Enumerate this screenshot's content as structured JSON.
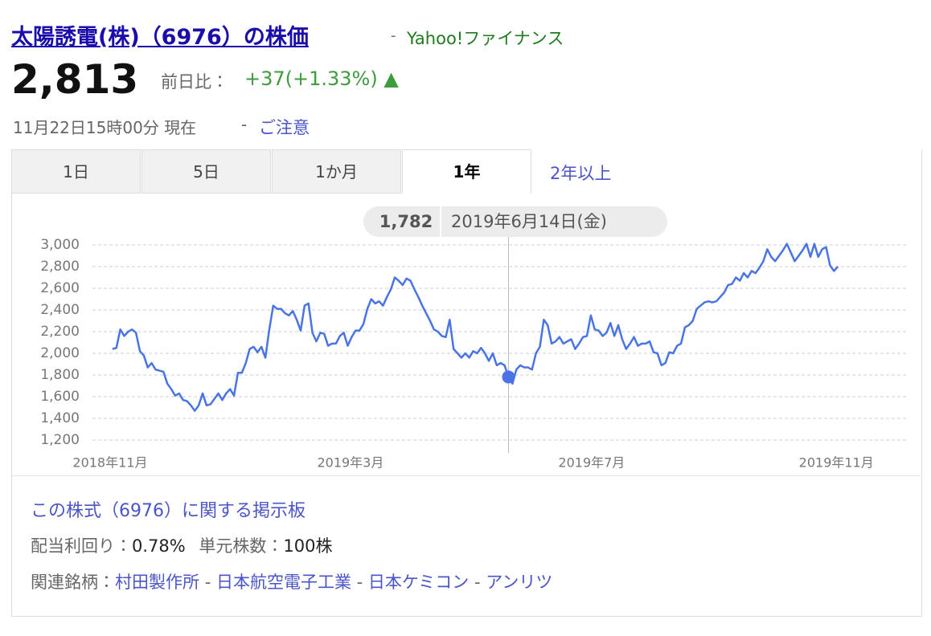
{
  "header": {
    "title": "太陽誘電(株)（6976）の株価",
    "separator": "-",
    "source": "Yahoo!ファイナンス",
    "price": "2,813",
    "change_label": "前日比：",
    "change": "+37(+1.33%) ▲",
    "status_time": "11月22日15時00分 現在",
    "notice": "ご注意"
  },
  "tabs": [
    "1日",
    "5日",
    "1か月",
    "1年",
    "2年以上"
  ],
  "chart_data": {
    "type": "line",
    "color": "#4a74e6",
    "grid": true,
    "series": [
      {
        "name": "株価",
        "color": "#4a74e6",
        "values": [
          2040,
          2050,
          2220,
          2160,
          2200,
          2220,
          2190,
          2020,
          1980,
          1870,
          1910,
          1850,
          1840,
          1830,
          1720,
          1670,
          1610,
          1630,
          1570,
          1560,
          1520,
          1470,
          1520,
          1630,
          1520,
          1530,
          1580,
          1630,
          1570,
          1630,
          1670,
          1610,
          1820,
          1820,
          1910,
          2040,
          2060,
          2010,
          2060,
          1960,
          2220,
          2440,
          2410,
          2410,
          2370,
          2350,
          2390,
          2310,
          2210,
          2440,
          2460,
          2190,
          2110,
          2190,
          2180,
          2070,
          2090,
          2090,
          2160,
          2190,
          2070,
          2150,
          2210,
          2210,
          2270,
          2410,
          2500,
          2460,
          2480,
          2440,
          2520,
          2590,
          2700,
          2670,
          2630,
          2690,
          2670,
          2590,
          2520,
          2440,
          2370,
          2300,
          2220,
          2200,
          2160,
          2150,
          2310,
          2040,
          2000,
          1960,
          2000,
          1960,
          2020,
          2000,
          2050,
          2000,
          1930,
          2000,
          1890,
          1910,
          1890,
          1782,
          1720,
          1850,
          1890,
          1870,
          1870,
          1850,
          2000,
          2060,
          2310,
          2260,
          2090,
          2110,
          2150,
          2090,
          2110,
          2130,
          2040,
          2090,
          2150,
          2160,
          2350,
          2220,
          2210,
          2160,
          2190,
          2280,
          2160,
          2260,
          2130,
          2040,
          2090,
          2150,
          2070,
          2090,
          2090,
          2110,
          2010,
          2000,
          1890,
          1910,
          2010,
          2000,
          2070,
          2090,
          2240,
          2260,
          2300,
          2410,
          2440,
          2470,
          2480,
          2470,
          2480,
          2520,
          2560,
          2630,
          2640,
          2700,
          2670,
          2740,
          2700,
          2760,
          2740,
          2790,
          2850,
          2960,
          2890,
          2850,
          2900,
          2950,
          3010,
          2930,
          2850,
          2900,
          2950,
          3010,
          2890,
          3010,
          2890,
          2960,
          2980,
          2810,
          2760,
          2800
        ]
      }
    ],
    "xlim": [
      -5.1,
      202.6
    ],
    "xticks": [
      {
        "value": -0.6,
        "label": "2018年11月"
      },
      {
        "value": 60.7,
        "label": "2019年3月"
      },
      {
        "value": 122.2,
        "label": "2019年7月"
      },
      {
        "value": 184.6,
        "label": "2019年11月"
      }
    ],
    "ylim": [
      1200,
      3000
    ],
    "yticks": [
      {
        "value": 1200,
        "label": "1,200"
      },
      {
        "value": 1400,
        "label": "1,400"
      },
      {
        "value": 1600,
        "label": "1,600"
      },
      {
        "value": 1800,
        "label": "1,800"
      },
      {
        "value": 2000,
        "label": "2,000"
      },
      {
        "value": 2200,
        "label": "2,200"
      },
      {
        "value": 2400,
        "label": "2,400"
      },
      {
        "value": 2600,
        "label": "2,600"
      },
      {
        "value": 2800,
        "label": "2,800"
      },
      {
        "value": 3000,
        "label": "3,000"
      }
    ],
    "tooltip": {
      "value": 1782,
      "label": "1,782",
      "date": "2019年6月14日(金)"
    }
  },
  "footer": {
    "board": "この株式（6976）に関する掲示板",
    "dividend_label": "配当利回り：",
    "dividend": "0.78%",
    "unit_label": "単元株数：",
    "unit": "100株",
    "related_label": "関連銘柄：",
    "related": [
      "村田製作所",
      "日本航空電子工業",
      "日本ケミコン",
      "アンリツ"
    ]
  }
}
